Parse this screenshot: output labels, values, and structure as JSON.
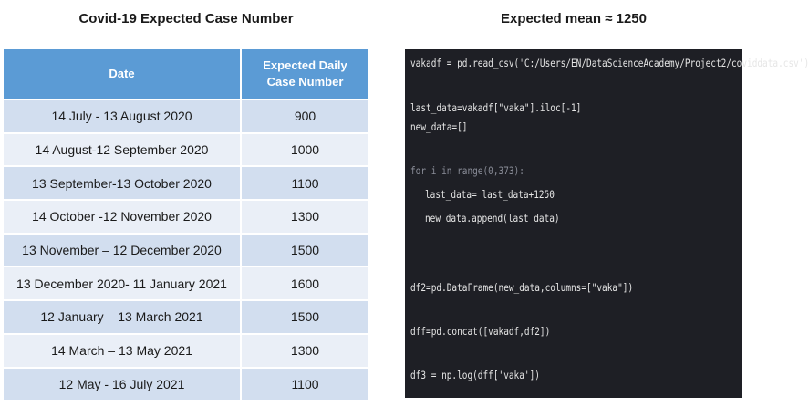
{
  "left_title": "Covid-19 Expected Case Number",
  "right_title": "Expected mean ≈ 1250",
  "table": {
    "headers": [
      "Date",
      "Expected Daily Case Number"
    ],
    "rows": [
      [
        "14 July - 13 August 2020",
        "900"
      ],
      [
        "14 August-12 September 2020",
        "1000"
      ],
      [
        "13 September-13 October 2020",
        "1100"
      ],
      [
        "14 October -12 November 2020",
        "1300"
      ],
      [
        "13 November – 12 December 2020",
        "1500"
      ],
      [
        "13 December 2020- 11 January 2021",
        "1600"
      ],
      [
        "12 January – 13 March 2021",
        "1500"
      ],
      [
        "14 March – 13 May 2021",
        "1300"
      ],
      [
        "12 May - 16 July 2021",
        "1100"
      ]
    ]
  },
  "code": {
    "line1": "vakadf = pd.read_csv('C:/Users/EN/DataScienceAcademy/Project2/coviddata.csv')",
    "line2": "last_data=vakadf[\"vaka\"].iloc[-1]",
    "line3": "new_data=[]",
    "line4": "for i in range(0,373):",
    "line5": "last_data= last_data+1250",
    "line6": "new_data.append(last_data)",
    "line7": "df2=pd.DataFrame(new_data,columns=[\"vaka\"])",
    "line8": "dff=pd.concat([vakadf,df2])",
    "line9": "df3 = np.log(dff['vaka'])"
  }
}
